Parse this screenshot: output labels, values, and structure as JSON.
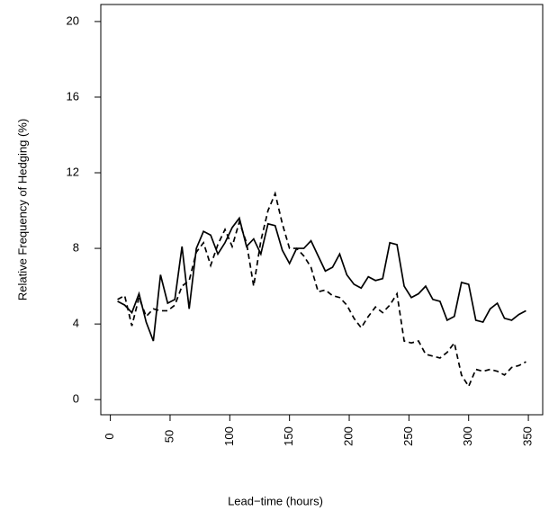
{
  "chart_data": {
    "type": "line",
    "xlabel": "Lead−time (hours)",
    "ylabel": "Relative Frequency of Hedging (%)",
    "x": [
      6,
      12,
      18,
      24,
      30,
      36,
      42,
      48,
      54,
      60,
      66,
      72,
      78,
      84,
      90,
      96,
      102,
      108,
      114,
      120,
      126,
      132,
      138,
      144,
      150,
      156,
      162,
      168,
      174,
      180,
      186,
      192,
      198,
      204,
      210,
      216,
      222,
      228,
      234,
      240,
      246,
      252,
      258,
      264,
      270,
      276,
      282,
      288,
      294,
      300,
      306,
      312,
      318,
      324,
      330,
      336,
      342,
      348
    ],
    "series": [
      {
        "color": "#000000",
        "linestyle": "solid",
        "values": [
          5.2,
          5.0,
          4.6,
          5.6,
          4.1,
          3.1,
          6.6,
          5.1,
          5.3,
          8.1,
          4.8,
          8.0,
          8.9,
          8.7,
          7.7,
          8.3,
          9.1,
          9.6,
          8.1,
          8.5,
          7.7,
          9.3,
          9.2,
          7.9,
          7.2,
          8.0,
          8.0,
          8.4,
          7.6,
          6.8,
          7.0,
          7.7,
          6.6,
          6.1,
          5.9,
          6.5,
          6.3,
          6.4,
          8.3,
          8.2,
          6.0,
          5.4,
          5.6,
          6.0,
          5.3,
          5.2,
          4.2,
          4.4,
          6.2,
          6.1,
          4.2,
          4.1,
          4.8,
          5.1,
          4.3,
          4.2,
          4.5,
          4.7
        ]
      },
      {
        "color": "#000000",
        "linestyle": "dashed",
        "values": [
          5.3,
          5.5,
          3.9,
          5.4,
          4.4,
          4.8,
          4.7,
          4.7,
          5.0,
          6.0,
          6.3,
          7.8,
          8.3,
          7.1,
          8.2,
          9.0,
          8.1,
          9.4,
          8.3,
          6.0,
          8.4,
          10.0,
          10.9,
          9.3,
          8.0,
          8.0,
          7.6,
          7.0,
          5.7,
          5.8,
          5.5,
          5.4,
          5.0,
          4.3,
          3.8,
          4.4,
          4.9,
          4.6,
          5.0,
          5.6,
          3.1,
          3.0,
          3.1,
          2.4,
          2.3,
          2.2,
          2.5,
          3.0,
          1.3,
          0.7,
          1.6,
          1.5,
          1.6,
          1.5,
          1.3,
          1.7,
          1.8,
          2.0
        ]
      }
    ],
    "xlim": [
      -8,
      362
    ],
    "xticks": [
      0,
      50,
      100,
      150,
      200,
      250,
      300,
      350
    ],
    "ylim": [
      -0.8,
      20.9
    ],
    "yticks": [
      0,
      4,
      8,
      12,
      16,
      20
    ]
  }
}
